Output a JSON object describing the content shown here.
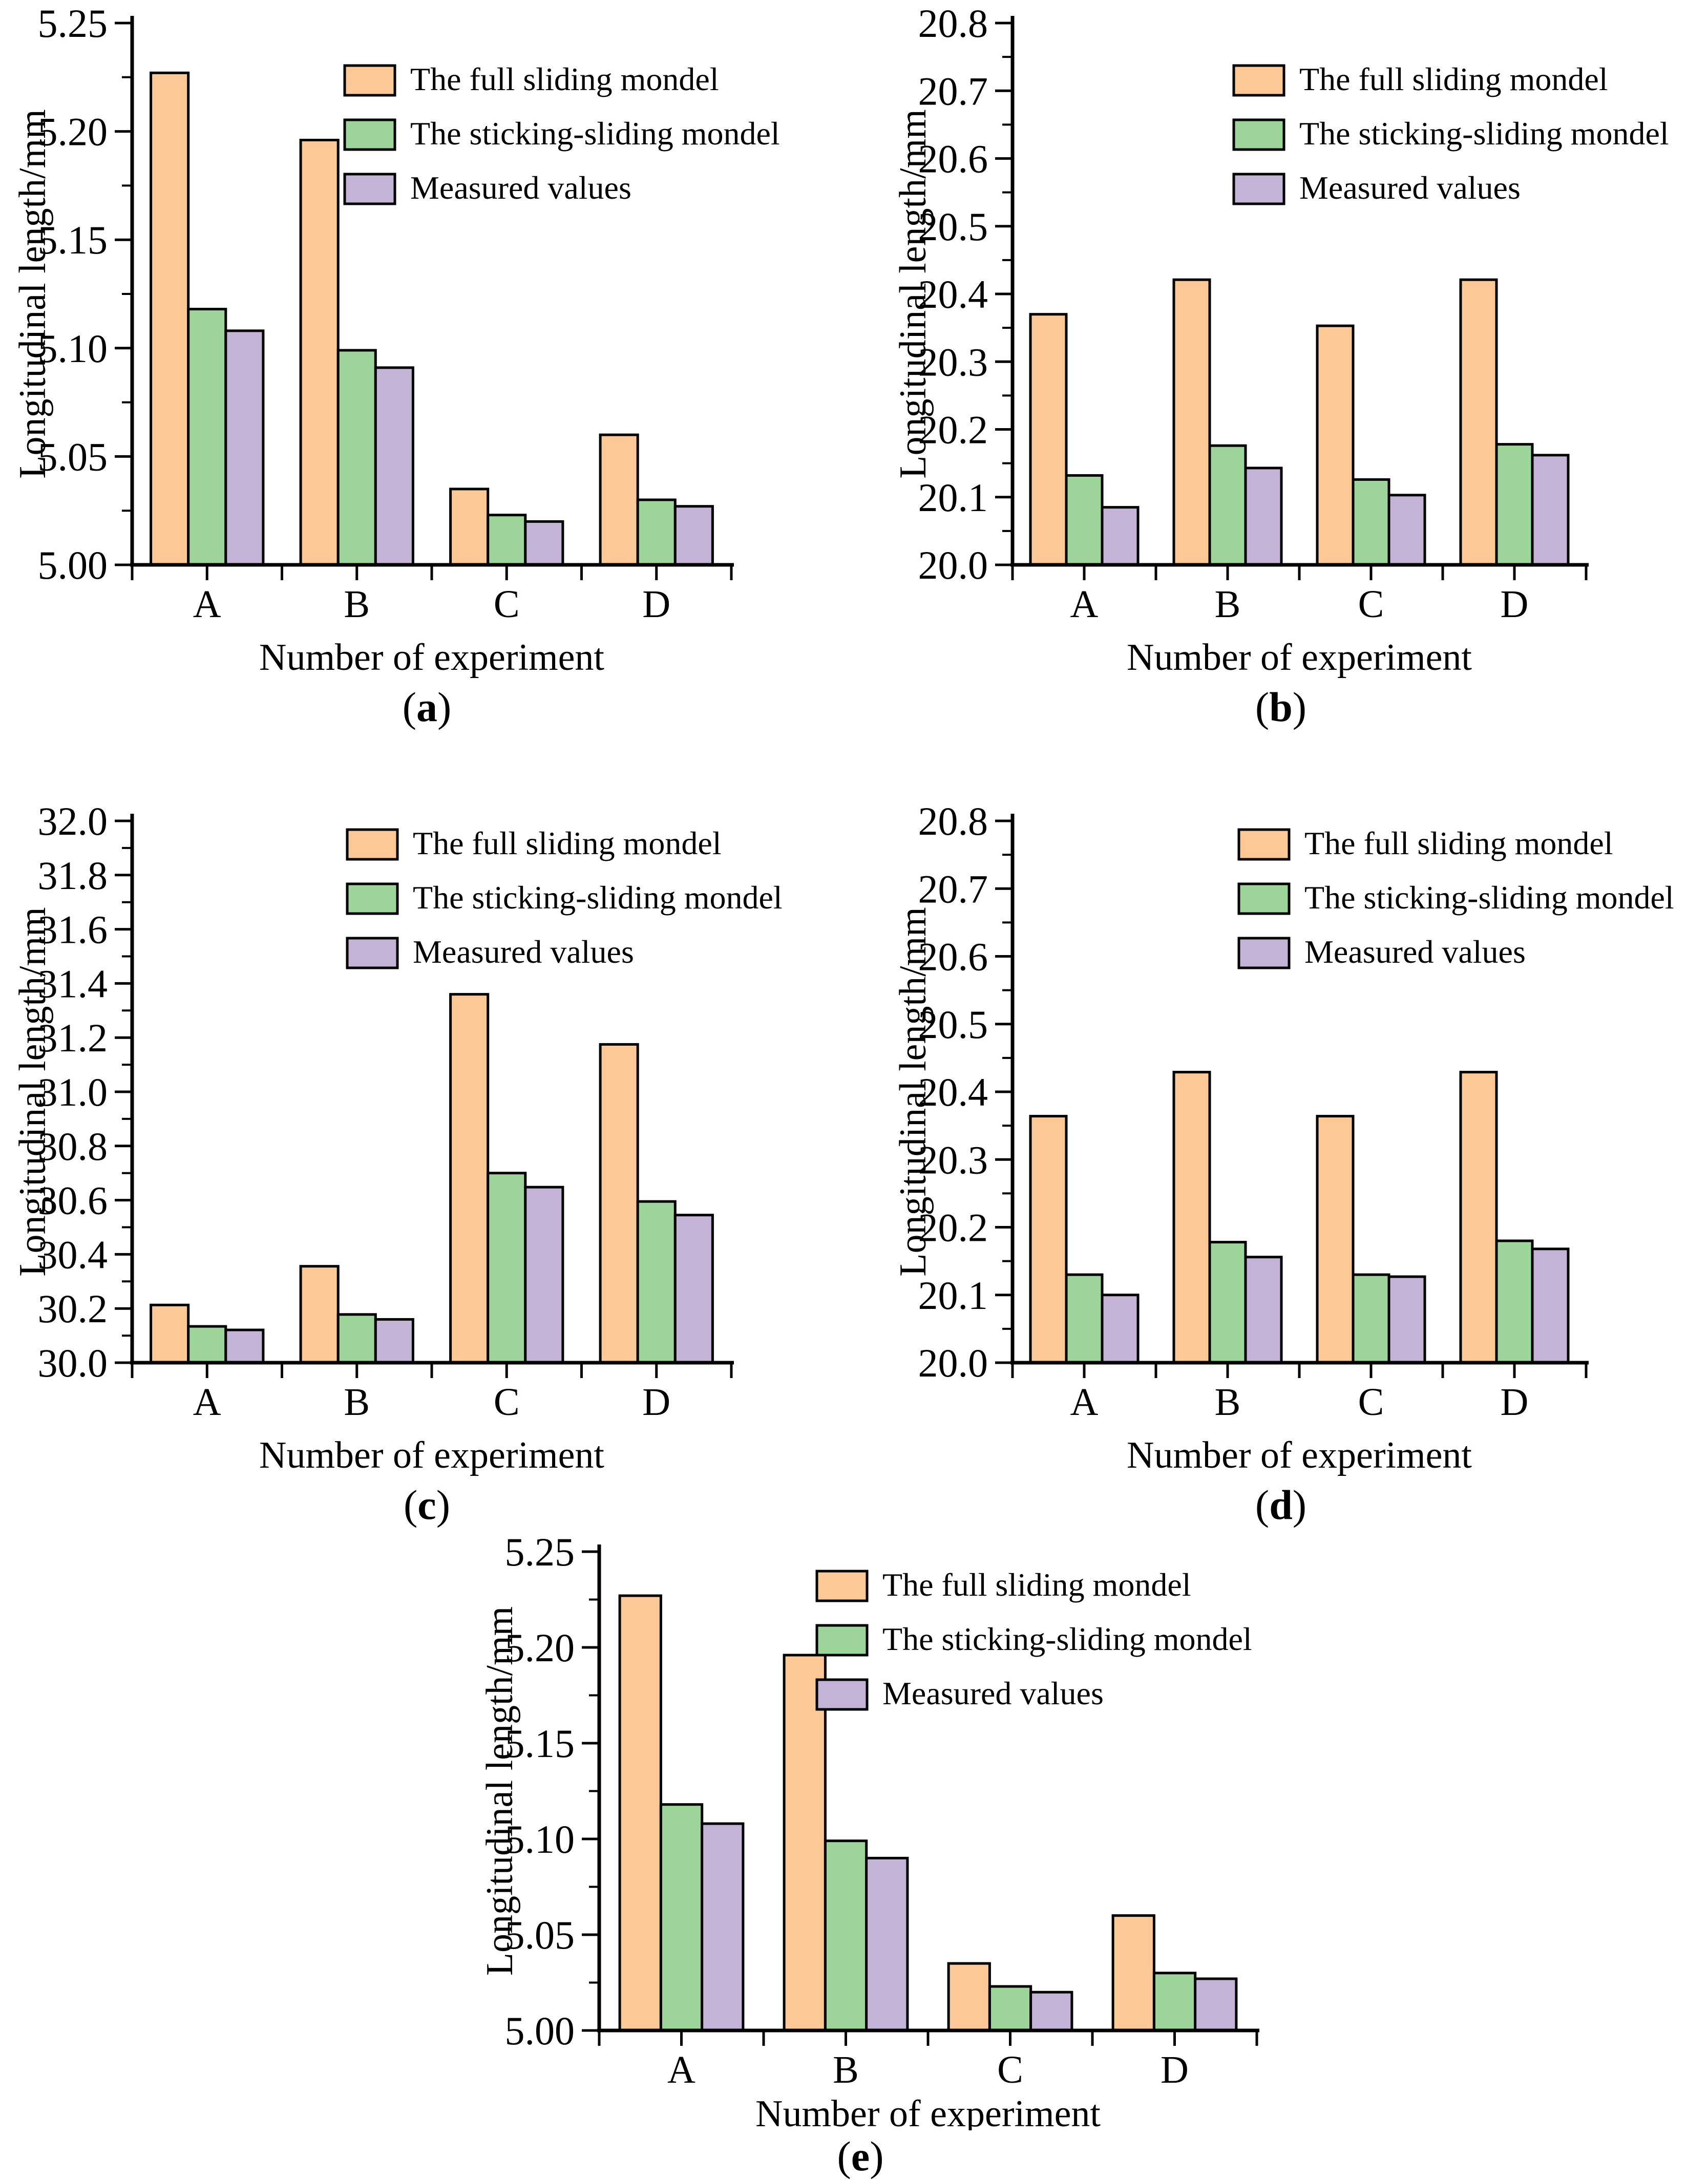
{
  "colors": {
    "full": "#FCC996",
    "stick": "#9DD49A",
    "measured": "#C3B3D6",
    "edge": "#000000",
    "background": "#ffffff"
  },
  "chart_data": [
    {
      "id": "a",
      "type": "bar",
      "title": "",
      "xlabel": "Number of experiment",
      "ylabel": "Longitudinal length/mm",
      "categories": [
        "A",
        "B",
        "C",
        "D"
      ],
      "series": [
        {
          "name": "The full sliding mondel",
          "color_key": "full",
          "values": [
            5.227,
            5.196,
            5.035,
            5.06
          ]
        },
        {
          "name": "The sticking-sliding mondel",
          "color_key": "stick",
          "values": [
            5.118,
            5.099,
            5.023,
            5.03
          ]
        },
        {
          "name": "Measured values",
          "color_key": "measured",
          "values": [
            5.108,
            5.091,
            5.02,
            5.027
          ]
        }
      ],
      "ylim": [
        5.0,
        5.25
      ],
      "ytick_step": 0.05,
      "ytick_decimals": 2,
      "grid": false,
      "legend_position": "top-inside",
      "caption": {
        "open": "(",
        "letter": "a",
        "close": ")"
      }
    },
    {
      "id": "b",
      "type": "bar",
      "title": "",
      "xlabel": "Number of experiment",
      "ylabel": "Longitudinal length/mm",
      "categories": [
        "A",
        "B",
        "C",
        "D"
      ],
      "series": [
        {
          "name": "The full sliding mondel",
          "color_key": "full",
          "values": [
            20.37,
            20.421,
            20.353,
            20.421
          ]
        },
        {
          "name": "The sticking-sliding mondel",
          "color_key": "stick",
          "values": [
            20.132,
            20.176,
            20.126,
            20.178
          ]
        },
        {
          "name": "Measured values",
          "color_key": "measured",
          "values": [
            20.085,
            20.143,
            20.103,
            20.162
          ]
        }
      ],
      "ylim": [
        20.0,
        20.8
      ],
      "ytick_step": 0.1,
      "ytick_decimals": 1,
      "grid": false,
      "legend_position": "top-inside",
      "caption": {
        "open": "(",
        "letter": "b",
        "close": ")"
      }
    },
    {
      "id": "c",
      "type": "bar",
      "title": "",
      "xlabel": "Number of experiment",
      "ylabel": "Longitudinal length/mm",
      "categories": [
        "A",
        "B",
        "C",
        "D"
      ],
      "series": [
        {
          "name": "The full sliding mondel",
          "color_key": "full",
          "values": [
            30.213,
            30.356,
            31.36,
            31.175
          ]
        },
        {
          "name": "The sticking-sliding mondel",
          "color_key": "stick",
          "values": [
            30.134,
            30.178,
            30.7,
            30.595
          ]
        },
        {
          "name": "Measured values",
          "color_key": "measured",
          "values": [
            30.121,
            30.16,
            30.648,
            30.545
          ]
        }
      ],
      "ylim": [
        30.0,
        32.0
      ],
      "ytick_step": 0.2,
      "ytick_decimals": 1,
      "grid": false,
      "legend_position": "top-inside",
      "caption": {
        "open": "(",
        "letter": "c",
        "close": ")"
      }
    },
    {
      "id": "d",
      "type": "bar",
      "title": "",
      "xlabel": "Number of experiment",
      "ylabel": "Longitudinal length/mm",
      "categories": [
        "A",
        "B",
        "C",
        "D"
      ],
      "series": [
        {
          "name": "The full sliding mondel",
          "color_key": "full",
          "values": [
            20.364,
            20.429,
            20.364,
            20.429
          ]
        },
        {
          "name": "The sticking-sliding mondel",
          "color_key": "stick",
          "values": [
            20.13,
            20.178,
            20.13,
            20.18
          ]
        },
        {
          "name": "Measured values",
          "color_key": "measured",
          "values": [
            20.1,
            20.156,
            20.127,
            20.168
          ]
        }
      ],
      "ylim": [
        20.0,
        20.8
      ],
      "ytick_step": 0.1,
      "ytick_decimals": 1,
      "grid": false,
      "legend_position": "top-inside",
      "caption": {
        "open": "(",
        "letter": "d",
        "close": ")"
      }
    },
    {
      "id": "e",
      "type": "bar",
      "title": "",
      "xlabel": "Number of experiment",
      "ylabel": "Longitudinal length/mm",
      "categories": [
        "A",
        "B",
        "C",
        "D"
      ],
      "series": [
        {
          "name": "The full sliding mondel",
          "color_key": "full",
          "values": [
            5.227,
            5.196,
            5.035,
            5.06
          ]
        },
        {
          "name": "The sticking-sliding mondel",
          "color_key": "stick",
          "values": [
            5.118,
            5.099,
            5.023,
            5.03
          ]
        },
        {
          "name": "Measured values",
          "color_key": "measured",
          "values": [
            5.108,
            5.09,
            5.02,
            5.027
          ]
        }
      ],
      "ylim": [
        5.0,
        5.25
      ],
      "ytick_step": 0.05,
      "ytick_decimals": 2,
      "grid": false,
      "legend_position": "top-inside",
      "caption": {
        "open": "(",
        "letter": "e",
        "close": ")"
      }
    }
  ]
}
